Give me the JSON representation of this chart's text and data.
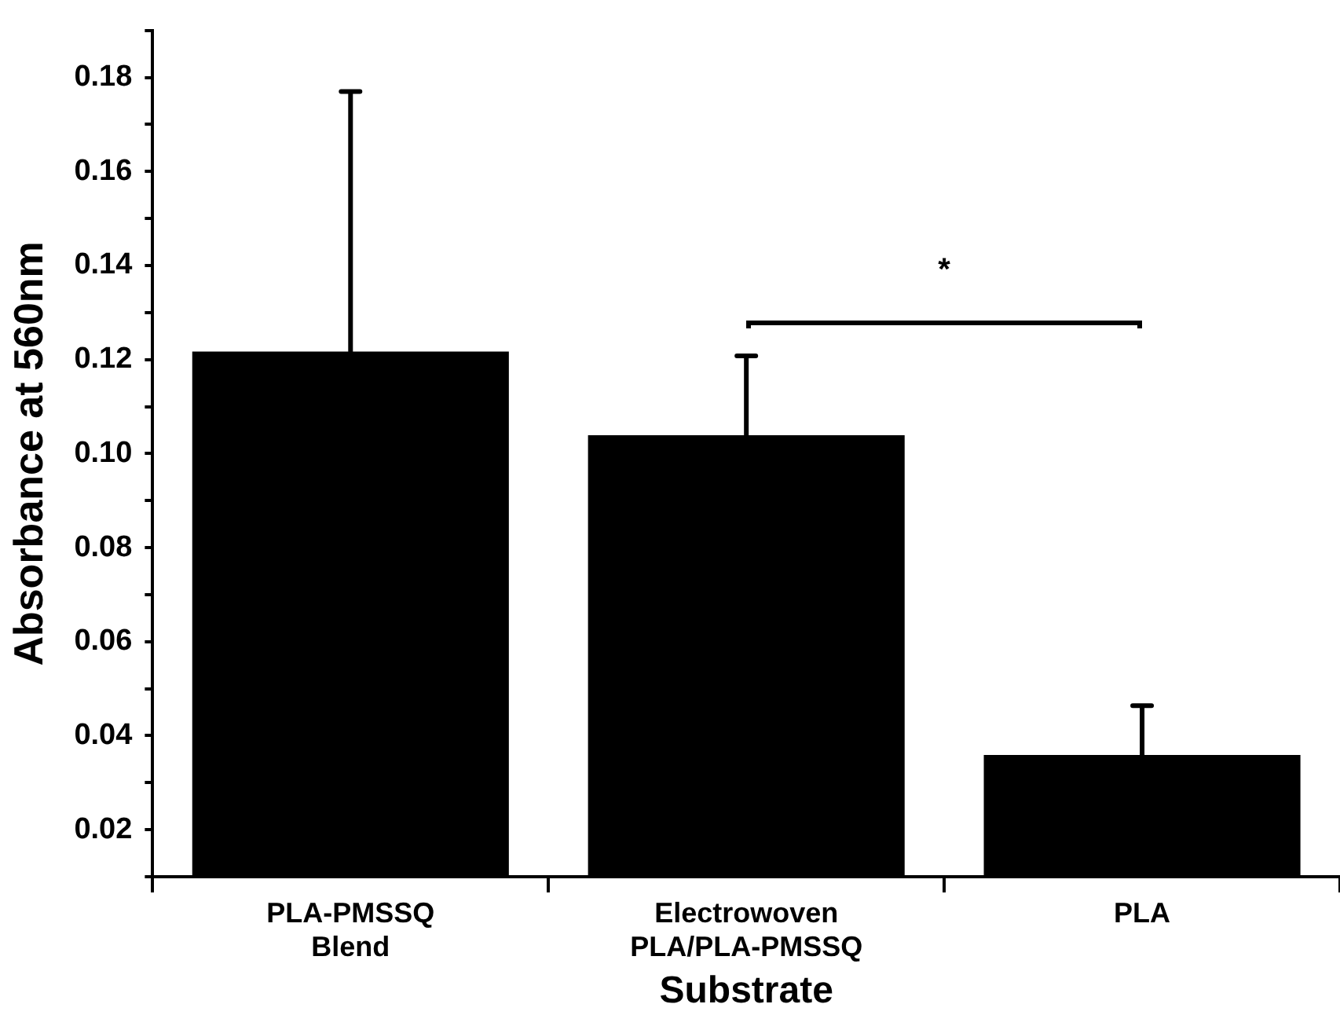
{
  "chart_data": {
    "type": "bar",
    "xlabel": "Substrate",
    "ylabel": "Absorbance at 560nm",
    "categories": [
      "PLA-PMSSQ\nBlend",
      "Electrowoven\nPLA/PLA-PMSSQ",
      "PLA"
    ],
    "values": [
      0.1217,
      0.1039,
      0.0359
    ],
    "errors": [
      [
        0.1217,
        0.177
      ],
      [
        0.1039,
        0.1208
      ],
      [
        0.0359,
        0.0464
      ]
    ],
    "color": "#000000",
    "ylim": [
      0.01,
      0.19
    ],
    "yticks": [
      {
        "value": 0.01,
        "label": null
      },
      0.02,
      {
        "value": 0.03,
        "label": null
      },
      0.04,
      {
        "value": 0.05,
        "label": null
      },
      0.06,
      {
        "value": 0.07,
        "label": null
      },
      0.08,
      {
        "value": 0.09,
        "label": null
      },
      "0.10",
      {
        "value": 0.11,
        "label": null
      },
      0.12,
      {
        "value": 0.13,
        "label": null
      },
      0.14,
      {
        "value": 0.15,
        "label": null
      },
      0.16,
      {
        "value": 0.17,
        "label": null
      },
      0.18,
      {
        "value": 0.19,
        "label": null
      }
    ],
    "annotations": [
      "*"
    ],
    "grid": false,
    "legend": false
  }
}
